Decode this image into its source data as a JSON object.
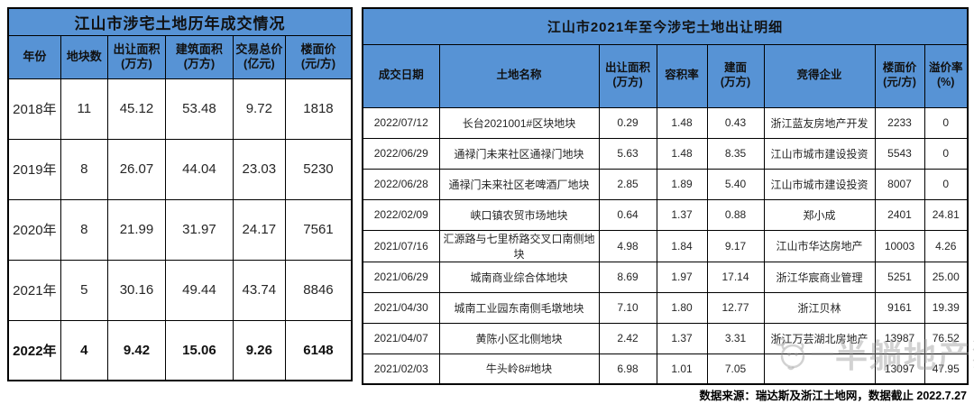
{
  "colors": {
    "header_blue": "#5793d5",
    "border_black": "#000000",
    "watermark_gray": "#919191"
  },
  "chart_data": [
    {
      "type": "table",
      "title": "江山市涉宅土地历年成交情况",
      "columns": [
        "年份",
        "地块数",
        "出让面积\n(万方)",
        "建筑面积\n(万方)",
        "交易总价\n(亿元)",
        "楼面价\n(元/方)"
      ],
      "rows": [
        [
          "2018年",
          "11",
          "45.12",
          "53.48",
          "9.72",
          "1818"
        ],
        [
          "2019年",
          "8",
          "26.07",
          "44.04",
          "23.03",
          "5230"
        ],
        [
          "2020年",
          "8",
          "21.99",
          "31.97",
          "24.17",
          "7561"
        ],
        [
          "2021年",
          "5",
          "30.16",
          "49.44",
          "43.74",
          "8846"
        ],
        [
          "2022年",
          "4",
          "9.42",
          "15.06",
          "9.26",
          "6148"
        ]
      ],
      "bold_row_index": 4
    },
    {
      "type": "table",
      "title": "江山市2021年至今涉宅土地出让明细",
      "columns": [
        "成交日期",
        "土地名称",
        "出让面积\n(万方)",
        "容积率",
        "建面\n(万方)",
        "竞得企业",
        "楼面价\n(元/方)",
        "溢价率\n(%)"
      ],
      "rows": [
        [
          "2022/07/12",
          "长台2021001#区块地块",
          "0.29",
          "1.48",
          "0.43",
          "浙江蓝友房地产开发",
          "2233",
          "0"
        ],
        [
          "2022/06/29",
          "通禄门未来社区通禄门地块",
          "5.63",
          "1.48",
          "8.35",
          "江山市城市建设投资",
          "5543",
          "0"
        ],
        [
          "2022/06/28",
          "通禄门未来社区老啤酒厂地块",
          "2.85",
          "1.89",
          "5.40",
          "江山市城市建设投资",
          "8007",
          "0"
        ],
        [
          "2022/02/09",
          "峡口镇农贸市场地块",
          "0.64",
          "1.37",
          "0.88",
          "郑小成",
          "2401",
          "24.81"
        ],
        [
          "2021/07/16",
          "汇源路与七里桥路交叉口南侧地块",
          "4.98",
          "1.84",
          "9.17",
          "江山市华达房地产",
          "10003",
          "4.26"
        ],
        [
          "2021/06/29",
          "城南商业综合体地块",
          "8.69",
          "1.97",
          "17.14",
          "浙江华宸商业管理",
          "5251",
          "25.00"
        ],
        [
          "2021/04/30",
          "城南工业园东南侧毛墩地块",
          "7.10",
          "1.80",
          "12.77",
          "浙江贝林",
          "9161",
          "19.39"
        ],
        [
          "2021/04/07",
          "黄陈小区北侧地块",
          "2.42",
          "1.37",
          "3.31",
          "浙江万芸湖北房地产",
          "13987",
          "76.52"
        ],
        [
          "2021/02/03",
          "牛头岭8#地块",
          "6.98",
          "1.01",
          "7.05",
          "",
          "13097",
          "47.95"
        ]
      ]
    }
  ],
  "footer": {
    "source_note": "数据来源：瑞达斯及浙江土地网，数据截止 2022.7.27"
  },
  "watermark": {
    "text": "半躺地产狗"
  }
}
